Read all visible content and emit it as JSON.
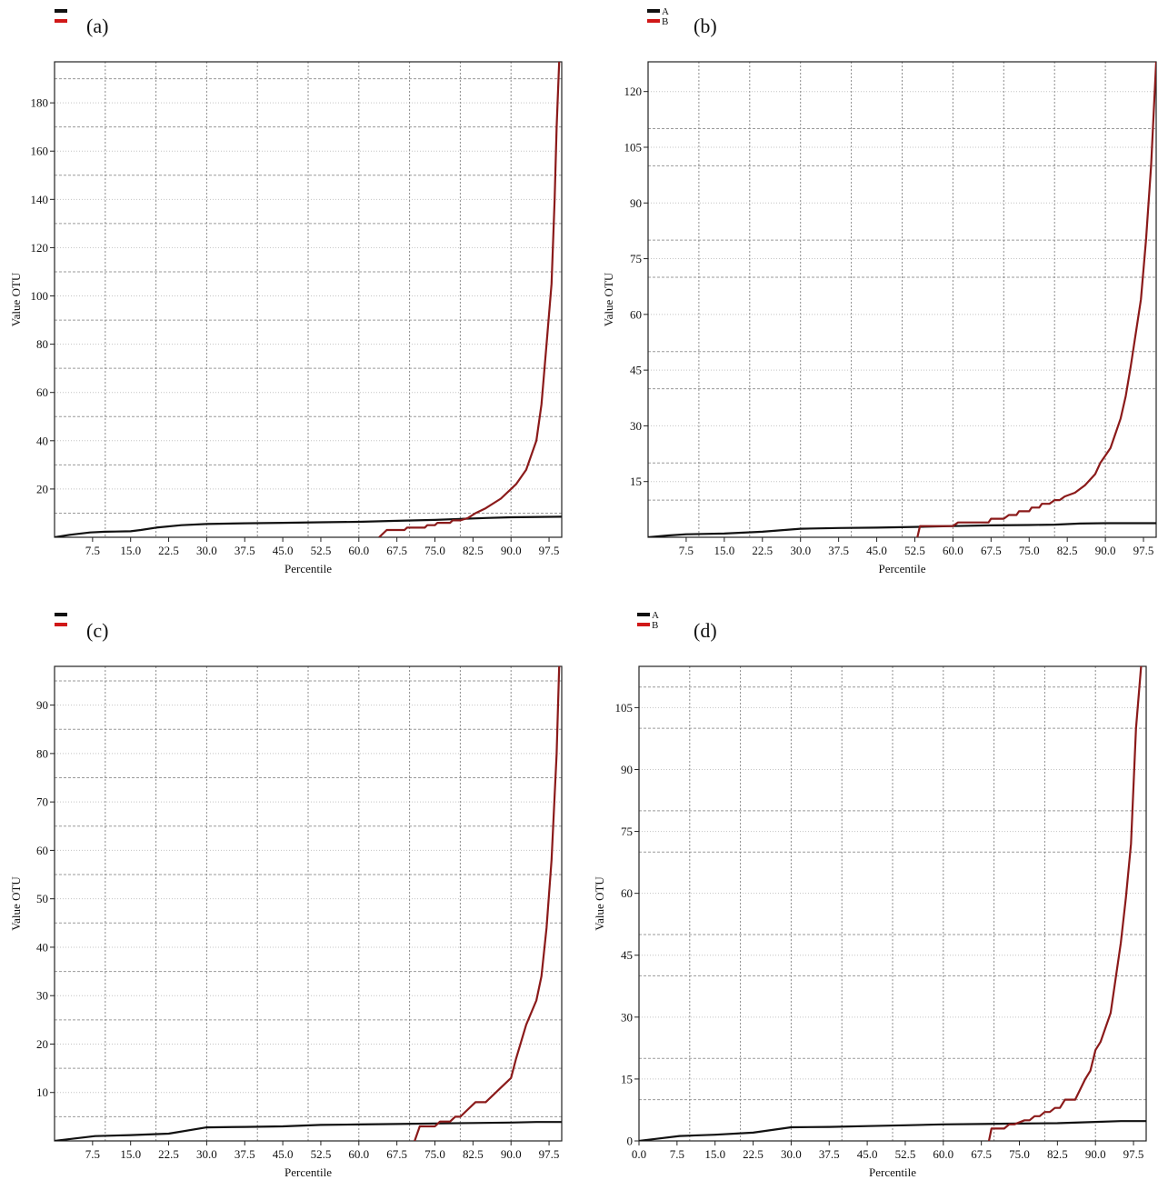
{
  "chart_data": [
    {
      "id": "a",
      "type": "line",
      "panel_label": "(a)",
      "xlabel": "Percentile",
      "ylabel": "Value OTU",
      "xlim": [
        0,
        100
      ],
      "ylim": [
        0,
        197
      ],
      "x_ticks": [
        7.5,
        15.0,
        22.5,
        30.0,
        37.5,
        45.0,
        52.5,
        60.0,
        67.5,
        75.0,
        82.5,
        90.0,
        97.5
      ],
      "x_tick_labels": [
        "7.5",
        "15.0",
        "22.5",
        "30.0",
        "37.5",
        "45.0",
        "52.5",
        "60.0",
        "67.5",
        "75.0",
        "82.5",
        "90.0",
        "97.5"
      ],
      "x_grid": [
        10,
        20,
        30,
        40,
        50,
        60,
        70,
        80,
        90
      ],
      "y_ticks": [
        20,
        40,
        60,
        80,
        100,
        120,
        140,
        160,
        180
      ],
      "y_tick_labels": [
        "20",
        "40",
        "60",
        "80",
        "100",
        "120",
        "140",
        "160",
        "180"
      ],
      "y_grid_dashed": [
        10,
        30,
        50,
        70,
        90,
        110,
        130,
        150,
        170,
        190
      ],
      "legend": [
        {
          "name": "",
          "color": "#111111"
        },
        {
          "name": "",
          "color": "#d01818"
        }
      ],
      "series": [
        {
          "color": "#111111",
          "x": [
            0,
            3,
            7,
            10,
            15,
            17,
            20,
            25,
            30,
            37.5,
            45,
            52.5,
            60,
            67.5,
            75,
            80,
            85,
            90,
            100
          ],
          "y": [
            0,
            1,
            2,
            2.3,
            2.5,
            3,
            4,
            5,
            5.5,
            5.8,
            6,
            6.2,
            6.4,
            6.8,
            7.2,
            7.6,
            8,
            8.3,
            8.5
          ]
        },
        {
          "color": "#8b1a1a",
          "x": [
            64,
            65.5,
            69,
            69.5,
            73,
            73.5,
            75,
            75.5,
            78,
            78.5,
            80,
            81.5,
            83,
            85,
            88,
            90,
            91,
            93,
            95,
            96,
            97,
            98,
            98.6,
            99,
            99.5
          ],
          "y": [
            0,
            3,
            3,
            4,
            4,
            5,
            5,
            6,
            6,
            7,
            7,
            8,
            10,
            12,
            16,
            20,
            22,
            28,
            40,
            55,
            80,
            105,
            140,
            170,
            197
          ]
        }
      ]
    },
    {
      "id": "b",
      "type": "line",
      "panel_label": "(b)",
      "xlabel": "Percentile",
      "ylabel": "Value OTU",
      "xlim": [
        0,
        100
      ],
      "ylim": [
        0,
        128
      ],
      "x_ticks": [
        7.5,
        15.0,
        22.5,
        30.0,
        37.5,
        45.0,
        52.5,
        60.0,
        67.5,
        75.0,
        82.5,
        90.0,
        97.5
      ],
      "x_tick_labels": [
        "7.5",
        "15.0",
        "22.5",
        "30.0",
        "37.5",
        "45.0",
        "52.5",
        "60.0",
        "67.5",
        "75.0",
        "82.5",
        "90.0",
        "97.5"
      ],
      "x_grid": [
        10,
        20,
        30,
        40,
        50,
        60,
        70,
        80,
        90
      ],
      "y_ticks": [
        15,
        30,
        45,
        60,
        75,
        90,
        105,
        120
      ],
      "y_tick_labels": [
        "15",
        "30",
        "45",
        "60",
        "75",
        "90",
        "105",
        "120"
      ],
      "y_grid_dashed": [
        10,
        20,
        40,
        50,
        70,
        80,
        100,
        110
      ],
      "legend": [
        {
          "name": "A",
          "color": "#111111"
        },
        {
          "name": "B",
          "color": "#d01818"
        }
      ],
      "series": [
        {
          "color": "#111111",
          "x": [
            0,
            4,
            7.5,
            15,
            22.5,
            30,
            37.5,
            45,
            52.5,
            60,
            67.5,
            75,
            80,
            85,
            90,
            100
          ],
          "y": [
            0,
            0.5,
            0.8,
            1,
            1.5,
            2.3,
            2.5,
            2.6,
            2.8,
            3,
            3.2,
            3.3,
            3.4,
            3.7,
            3.8,
            3.8
          ]
        },
        {
          "color": "#8b1a1a",
          "x": [
            53,
            53.5,
            60,
            61,
            67,
            67.5,
            70,
            71,
            72.5,
            73,
            75,
            75.5,
            77,
            77.5,
            79,
            80,
            81,
            82,
            84,
            86,
            88,
            89,
            90,
            91,
            92,
            93,
            94,
            95,
            96,
            97,
            98,
            99,
            100
          ],
          "y": [
            0,
            3,
            3,
            4,
            4,
            5,
            5,
            6,
            6,
            7,
            7,
            8,
            8,
            9,
            9,
            10,
            10,
            11,
            12,
            14,
            17,
            20,
            22,
            24,
            28,
            32,
            38,
            46,
            55,
            64,
            80,
            100,
            128
          ]
        }
      ]
    },
    {
      "id": "c",
      "type": "line",
      "panel_label": "(c)",
      "xlabel": "Percentile",
      "ylabel": "Value OTU",
      "xlim": [
        0,
        100
      ],
      "ylim": [
        0,
        98
      ],
      "x_ticks": [
        7.5,
        15.0,
        22.5,
        30.0,
        37.5,
        45.0,
        52.5,
        60.0,
        67.5,
        75.0,
        82.5,
        90.0,
        97.5
      ],
      "x_tick_labels": [
        "7.5",
        "15.0",
        "22.5",
        "30.0",
        "37.5",
        "45.0",
        "52.5",
        "60.0",
        "67.5",
        "75.0",
        "82.5",
        "90.0",
        "97.5"
      ],
      "x_grid": [
        10,
        20,
        30,
        40,
        50,
        60,
        70,
        80,
        90
      ],
      "y_ticks": [
        10,
        20,
        30,
        40,
        50,
        60,
        70,
        80,
        90
      ],
      "y_tick_labels": [
        "10",
        "20",
        "30",
        "40",
        "50",
        "60",
        "70",
        "80",
        "90"
      ],
      "y_grid_dashed": [
        5,
        15,
        25,
        35,
        45,
        55,
        65,
        75,
        85,
        95
      ],
      "legend": [
        {
          "name": "",
          "color": "#111111"
        },
        {
          "name": "",
          "color": "#d01818"
        }
      ],
      "series": [
        {
          "color": "#111111",
          "x": [
            0,
            4,
            8,
            15,
            22.5,
            30,
            37.5,
            45,
            52.5,
            60,
            67.5,
            75,
            82.5,
            90,
            95,
            100
          ],
          "y": [
            0,
            0.5,
            1,
            1.2,
            1.5,
            2.8,
            2.9,
            3,
            3.3,
            3.4,
            3.5,
            3.6,
            3.7,
            3.8,
            3.9,
            3.9
          ]
        },
        {
          "color": "#8b1a1a",
          "x": [
            71,
            72,
            75,
            76,
            78,
            79,
            80,
            81,
            83,
            85,
            88,
            90,
            91,
            93,
            95,
            96,
            97,
            98,
            99,
            99.5
          ],
          "y": [
            0,
            3,
            3,
            4,
            4,
            5,
            5,
            6,
            8,
            8,
            11,
            13,
            17,
            24,
            29,
            34,
            44,
            58,
            80,
            98
          ]
        }
      ]
    },
    {
      "id": "d",
      "type": "line",
      "panel_label": "(d)",
      "xlabel": "Percentile",
      "ylabel": "Value OTU",
      "xlim": [
        0,
        100
      ],
      "ylim": [
        0,
        115
      ],
      "x_ticks": [
        0,
        7.5,
        15.0,
        22.5,
        30.0,
        37.5,
        45.0,
        52.5,
        60.0,
        67.5,
        75.0,
        82.5,
        90.0,
        97.5
      ],
      "x_tick_labels": [
        "0.0",
        "7.5",
        "15.0",
        "22.5",
        "30.0",
        "37.5",
        "45.0",
        "52.5",
        "60.0",
        "67.5",
        "75.0",
        "82.5",
        "90.0",
        "97.5"
      ],
      "x_grid": [
        10,
        20,
        30,
        40,
        50,
        60,
        70,
        80,
        90
      ],
      "y_ticks": [
        0,
        15,
        30,
        45,
        60,
        75,
        90,
        105
      ],
      "y_tick_labels": [
        "0",
        "15",
        "30",
        "45",
        "60",
        "75",
        "90",
        "105"
      ],
      "y_grid_dashed": [
        10,
        20,
        40,
        50,
        70,
        80,
        100,
        110
      ],
      "legend": [
        {
          "name": "A",
          "color": "#111111"
        },
        {
          "name": "B",
          "color": "#d01818"
        }
      ],
      "series": [
        {
          "color": "#111111",
          "x": [
            0,
            4,
            8,
            15,
            22.5,
            30,
            37.5,
            45,
            52.5,
            60,
            67.5,
            75,
            82.5,
            90,
            95,
            100
          ],
          "y": [
            0,
            0.6,
            1.2,
            1.5,
            2,
            3.3,
            3.4,
            3.6,
            3.8,
            4,
            4.1,
            4.2,
            4.3,
            4.6,
            4.8,
            4.8
          ]
        },
        {
          "color": "#8b1a1a",
          "x": [
            69,
            69.5,
            72,
            73,
            74,
            76,
            77,
            78,
            79,
            80,
            81,
            82,
            83,
            84,
            86,
            88,
            89,
            90,
            91,
            93,
            95,
            96,
            97,
            98,
            99
          ],
          "y": [
            0,
            3,
            3,
            4,
            4,
            5,
            5,
            6,
            6,
            7,
            7,
            8,
            8,
            10,
            10,
            15,
            17,
            22,
            24,
            31,
            48,
            59,
            72,
            100,
            115
          ]
        }
      ]
    }
  ]
}
